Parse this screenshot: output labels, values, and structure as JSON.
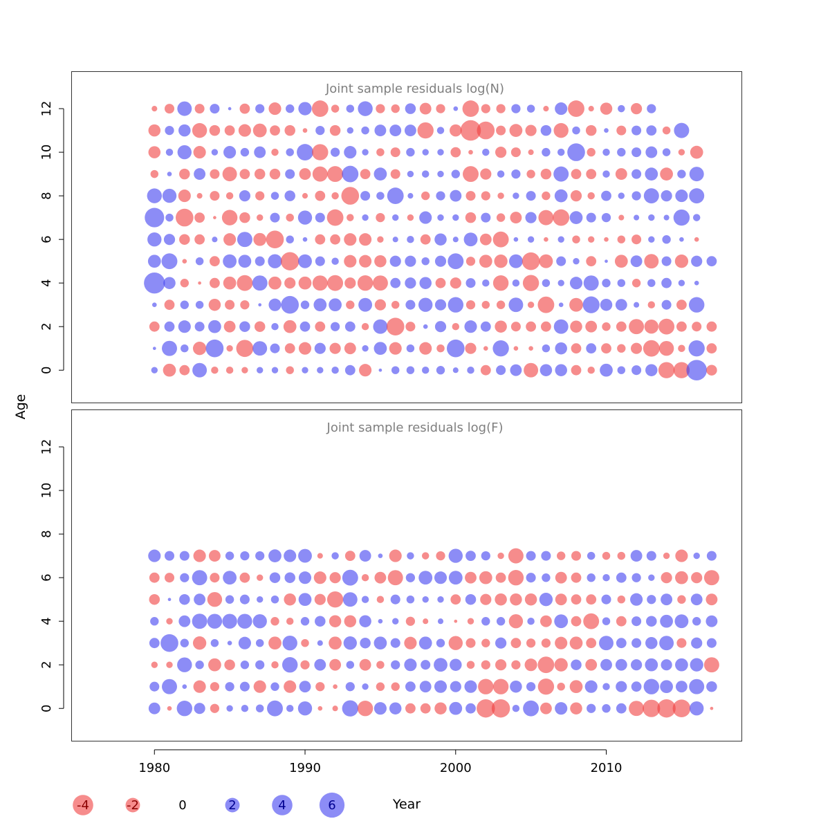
{
  "chart_data": {
    "type": "scatter",
    "subtype": "bubble residual plot",
    "x_label": "Year",
    "y_label": "Age",
    "x_ticks": [
      "1980",
      "1990",
      "2000",
      "2010"
    ],
    "y_ticks": [
      "0",
      "2",
      "4",
      "6",
      "8",
      "10",
      "12"
    ],
    "xlim": [
      1974.5,
      2019
    ],
    "ylim": [
      -1.5,
      13.7
    ],
    "years": [
      1980,
      2017
    ],
    "colors": {
      "positive": "#4040f0",
      "negative": "#f04040"
    },
    "fill_opacity": 0.6,
    "grid": false,
    "legend": {
      "position": "bottom",
      "entries": [
        "-4",
        "-2",
        "0",
        "2",
        "4",
        "6"
      ],
      "values": [
        -4,
        -2,
        0,
        2,
        4,
        6
      ]
    },
    "panels": [
      {
        "title": "Joint sample residuals log(N)",
        "ages": [
          0,
          12
        ],
        "residuals": [
          [
            0.4,
            -1.6,
            -1.0,
            2.0,
            -0.5,
            -0.5,
            -0.4,
            0.4,
            0.4,
            -0.6,
            0.4,
            0.4,
            0.5,
            1.0,
            -1.5,
            0.1,
            0.6,
            0.6,
            0.5,
            0.7,
            0.3,
            0.5,
            -1.0,
            0.9,
            1.3,
            -2.0,
            1.4,
            1.4,
            -1.0,
            -0.5,
            1.6,
            0.6,
            0.9,
            1.4,
            -2.5,
            -2.5,
            4.0,
            -1.1
          ],
          [
            0.1,
            2.2,
            0.6,
            -1.7,
            3.0,
            -0.4,
            -2.8,
            2.0,
            0.9,
            -1.0,
            -1.5,
            1.2,
            -1.2,
            -1.3,
            0.4,
            1.6,
            -1.5,
            0.6,
            -1.5,
            -0.6,
            3.0,
            -1.2,
            -0.2,
            2.5,
            -0.2,
            -0.2,
            0.6,
            1.4,
            -1.0,
            1.0,
            -1.0,
            -0.7,
            -1.2,
            -2.6,
            -2.1,
            -0.5,
            2.5,
            -1.0
          ],
          [
            -1.0,
            1.0,
            1.5,
            0.9,
            1.6,
            -1.3,
            1.1,
            -1.1,
            0.5,
            -1.6,
            1.0,
            -1.0,
            0.8,
            1.0,
            -0.5,
            2.0,
            -3.0,
            -0.9,
            0.2,
            1.2,
            -0.5,
            1.5,
            1.0,
            -1.4,
            -0.9,
            -1.0,
            -1.0,
            2.0,
            -1.4,
            -1.3,
            -0.7,
            -1.0,
            -2.2,
            -1.9,
            -2.4,
            -1.0,
            -0.9,
            -1.0
          ],
          [
            0.2,
            -1.0,
            0.7,
            0.6,
            -1.4,
            -0.9,
            -0.8,
            0.1,
            1.5,
            3.0,
            0.7,
            1.6,
            1.6,
            -0.7,
            1.8,
            -1.2,
            -0.6,
            0.9,
            1.9,
            1.2,
            2.3,
            -0.8,
            -0.6,
            -0.7,
            2.0,
            -0.4,
            -2.6,
            0.2,
            -1.8,
            2.7,
            1.4,
            1.3,
            0.3,
            -0.5,
            0.9,
            -1.0,
            2.3
          ],
          [
            4.2,
            1.4,
            -0.7,
            -0.1,
            -1.0,
            -1.6,
            -2.4,
            2.2,
            -1.6,
            -1.2,
            -1.6,
            -2.2,
            -2.4,
            -1.2,
            -2.3,
            -2.2,
            1.0,
            1.2,
            1.4,
            -1.0,
            -1.2,
            0.9,
            0.5,
            -2.3,
            0.5,
            -2.5,
            0.6,
            0.4,
            1.5,
            2.2,
            0.7,
            0.6,
            -0.7,
            0.6,
            1.0,
            0.4,
            0.2
          ],
          [
            1.6,
            2.4,
            -0.2,
            0.6,
            -1.0,
            1.8,
            1.6,
            0.9,
            1.9,
            -3.2,
            1.8,
            0.9,
            0.5,
            -1.5,
            -1.5,
            -1.4,
            1.2,
            1.2,
            0.6,
            1.2,
            2.4,
            -0.8,
            -1.6,
            -1.7,
            1.8,
            -3.0,
            -1.8,
            0.9,
            0.4,
            -1.0,
            0.1,
            -1.6,
            1.3,
            -2.0,
            0.9,
            -1.7,
            1.2,
            1.0
          ],
          [
            1.9,
            1.2,
            -1.1,
            -1.0,
            0.3,
            -1.5,
            2.2,
            -1.6,
            -3.0,
            0.6,
            0.2,
            -1.0,
            -1.0,
            -1.5,
            -1.5,
            -0.4,
            0.3,
            0.5,
            -1.0,
            1.4,
            0.3,
            1.8,
            -1.3,
            -2.4,
            0.2,
            0.4,
            -0.2,
            0.4,
            -0.6,
            -0.4,
            -0.2,
            -0.6,
            -0.9,
            0.4,
            0.7,
            0.2,
            -0.2
          ],
          [
            3.6,
            0.6,
            -3.0,
            -1.0,
            -0.1,
            -2.3,
            -1.1,
            -0.4,
            0.9,
            -0.6,
            1.9,
            0.9,
            -2.6,
            -0.5,
            0.4,
            -0.8,
            0.4,
            -0.4,
            1.5,
            0.4,
            0.4,
            -1.1,
            0.9,
            -0.7,
            -1.3,
            1.2,
            -2.2,
            -2.6,
            1.6,
            0.9,
            0.8,
            -0.3,
            0.3,
            0.4,
            0.3,
            2.5,
            0.5
          ],
          [
            2.1,
            1.9,
            -1.5,
            -0.3,
            -0.9,
            -0.5,
            1.2,
            -0.8,
            0.6,
            1.1,
            -0.3,
            -1.0,
            -0.5,
            -3.0,
            0.9,
            0.6,
            2.6,
            0.3,
            -0.7,
            0.8,
            1.3,
            -0.9,
            -0.8,
            -0.4,
            0.4,
            0.9,
            -0.7,
            1.6,
            -1.2,
            -0.5,
            1.0,
            0.4,
            0.8,
            2.2,
            1.2,
            1.5,
            2.2
          ],
          [
            -0.6,
            0.2,
            -1.1,
            1.3,
            -0.9,
            -2.0,
            -1.0,
            -1.1,
            -1.1,
            0.9,
            -1.3,
            -2.2,
            -2.4,
            2.6,
            -1.0,
            1.6,
            -0.9,
            0.4,
            0.5,
            0.4,
            0.7,
            -2.4,
            -1.2,
            0.5,
            0.8,
            -0.7,
            -1.1,
            2.2,
            -1.0,
            -1.0,
            0.5,
            -1.3,
            0.9,
            1.6,
            -1.6,
            0.7,
            2.0
          ],
          [
            -1.4,
            0.5,
            1.9,
            -1.5,
            0.4,
            1.5,
            0.7,
            1.3,
            -0.5,
            0.6,
            2.6,
            -2.5,
            0.8,
            1.5,
            0.4,
            -0.6,
            -0.9,
            0.7,
            0.4,
            0.4,
            -1.0,
            -0.2,
            0.5,
            -1.2,
            -0.9,
            -0.3,
            0.7,
            0.5,
            3.0,
            -0.7,
            0.5,
            0.7,
            0.9,
            1.3,
            0.6,
            -0.4,
            -1.6
          ],
          [
            -1.4,
            0.8,
            1.4,
            -2.1,
            -1.1,
            -1.0,
            -1.5,
            -1.8,
            -1.0,
            -1.1,
            -0.2,
            0.8,
            -1.1,
            0.4,
            0.6,
            1.3,
            1.3,
            1.3,
            -2.5,
            0.5,
            -1.4,
            -4.0,
            -3.0,
            -0.9,
            -1.6,
            -1.2,
            1.1,
            -2.1,
            0.6,
            -1.1,
            0.2,
            -0.9,
            0.9,
            1.0,
            -0.6,
            2.2
          ],
          [
            -0.3,
            -0.9,
            2.0,
            -0.9,
            0.9,
            0.1,
            -1.0,
            0.8,
            -1.5,
            0.7,
            1.7,
            -2.6,
            -0.6,
            0.6,
            2.1,
            -0.8,
            -0.7,
            1.1,
            -1.3,
            -0.8,
            0.2,
            -2.6,
            -0.8,
            -0.8,
            0.8,
            0.6,
            -0.3,
            1.5,
            -2.6,
            -0.3,
            -1.4,
            0.5,
            -1.2,
            0.8
          ]
        ]
      },
      {
        "title": "Joint sample residuals log(F)",
        "ages": [
          0,
          7
        ],
        "residuals": [
          [
            1.3,
            -0.2,
            2.3,
            1.2,
            -0.8,
            0.4,
            0.5,
            0.6,
            2.4,
            0.5,
            1.9,
            -0.2,
            -0.3,
            2.5,
            -2.3,
            1.5,
            1.4,
            -1.0,
            -1.0,
            -1.4,
            1.6,
            1.0,
            -3.2,
            -3.2,
            0.5,
            2.4,
            -1.3,
            1.5,
            -1.4,
            0.8,
            0.7,
            1.0,
            -2.2,
            -2.9,
            -3.2,
            -3.0,
            1.9,
            -0.1
          ],
          [
            0.9,
            2.2,
            0.2,
            -1.5,
            -0.8,
            0.8,
            0.9,
            -1.5,
            0.7,
            -1.5,
            1.3,
            -0.8,
            -0.2,
            0.8,
            0.4,
            -0.7,
            -0.7,
            1.0,
            1.3,
            1.5,
            1.2,
            1.5,
            -2.3,
            -2.3,
            1.4,
            0.8,
            -2.5,
            -0.6,
            -1.6,
            1.5,
            0.5,
            1.2,
            1.0,
            2.3,
            1.6,
            1.3,
            2.2,
            1.1
          ],
          [
            -0.4,
            -0.4,
            2.1,
            0.7,
            -1.6,
            -1.1,
            0.7,
            0.8,
            -0.5,
            2.3,
            -0.8,
            1.3,
            -1.3,
            0.6,
            -1.3,
            -0.6,
            0.8,
            1.5,
            0.9,
            1.8,
            1.4,
            -0.6,
            -0.8,
            -1.2,
            -0.8,
            -1.5,
            -2.6,
            -1.7,
            1.1,
            -1.3,
            1.3,
            1.3,
            1.2,
            1.6,
            1.2,
            1.6,
            1.7,
            -2.2
          ],
          [
            1.0,
            3.0,
            0.7,
            -1.7,
            0.6,
            0.2,
            1.5,
            0.6,
            -1.6,
            2.1,
            -0.6,
            0.3,
            -1.6,
            1.7,
            1.1,
            1.6,
            0.9,
            -1.5,
            1.6,
            0.7,
            -1.9,
            -0.9,
            -0.7,
            1.2,
            -1.0,
            -0.8,
            -0.8,
            -1.5,
            -1.6,
            -1.0,
            2.0,
            1.0,
            0.9,
            1.4,
            2.0,
            -0.9,
            1.2,
            0.9
          ],
          [
            0.7,
            -0.4,
            1.3,
            2.2,
            2.1,
            2.1,
            2.1,
            1.9,
            -0.7,
            -0.5,
            0.7,
            1.1,
            -1.4,
            -1.4,
            1.4,
            0.2,
            0.4,
            -0.8,
            -0.3,
            0.3,
            -0.1,
            -0.4,
            0.7,
            0.7,
            -1.9,
            0.5,
            -1.3,
            1.8,
            -1.0,
            -2.4,
            0.6,
            -1.0,
            0.9,
            1.1,
            1.6,
            1.8,
            0.7,
            1.3
          ],
          [
            -1.1,
            0.1,
            1.1,
            1.3,
            -2.1,
            0.7,
            0.9,
            0.4,
            0.6,
            -1.4,
            1.6,
            -1.2,
            -2.5,
            2.0,
            0.5,
            -0.5,
            0.9,
            0.6,
            0.4,
            0.4,
            -1.0,
            1.1,
            -1.2,
            -1.4,
            -1.4,
            -1.4,
            1.7,
            -1.3,
            -1.0,
            -1.0,
            0.9,
            -0.6,
            1.5,
            0.8,
            1.3,
            -0.7,
            1.3,
            -1.3
          ],
          [
            -1.0,
            -0.9,
            0.8,
            2.2,
            -0.9,
            1.8,
            -1.0,
            -0.4,
            1.1,
            1.1,
            1.5,
            -1.5,
            -1.2,
            2.4,
            -0.5,
            -1.3,
            -2.2,
            0.8,
            1.8,
            1.5,
            1.8,
            -1.3,
            -1.6,
            -1.0,
            -2.3,
            0.9,
            0.7,
            -1.3,
            -1.0,
            0.7,
            0.5,
            1.0,
            0.8,
            0.4,
            -1.2,
            -1.6,
            -1.2,
            -2.2
          ],
          [
            1.5,
            0.9,
            0.9,
            -1.5,
            -1.3,
            0.7,
            0.8,
            0.8,
            1.6,
            1.5,
            1.8,
            -0.3,
            0.5,
            -1.0,
            1.3,
            0.2,
            -1.5,
            0.5,
            -0.5,
            -0.8,
            1.9,
            1.0,
            0.8,
            -0.4,
            -2.2,
            0.9,
            0.9,
            -0.7,
            -0.9,
            0.6,
            -0.6,
            -0.6,
            1.3,
            0.9,
            -0.4,
            -1.5,
            0.4,
            0.9
          ]
        ]
      }
    ]
  }
}
